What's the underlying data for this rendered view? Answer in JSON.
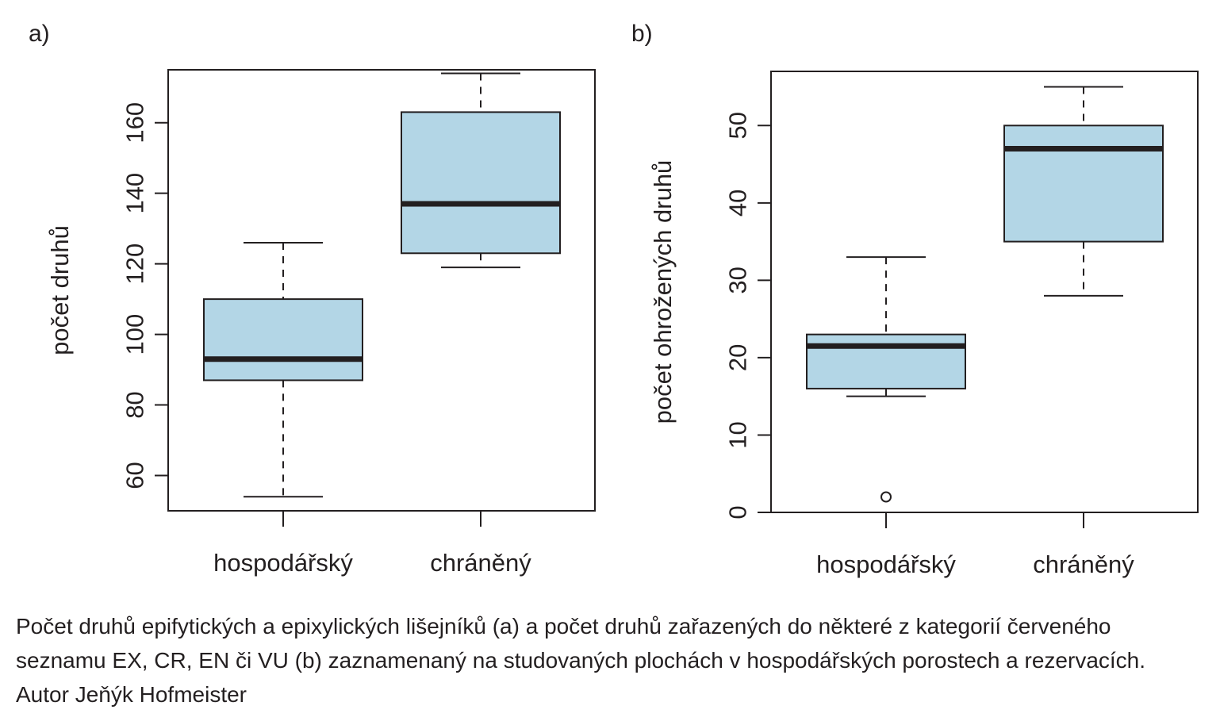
{
  "colors": {
    "box_fill": "#b3d6e6",
    "stroke": "#231f20",
    "background": "#ffffff"
  },
  "chart_data": [
    {
      "type": "boxplot",
      "panel_label": "a)",
      "ylabel": "počet druhů",
      "ylim": [
        50,
        175
      ],
      "yticks": [
        60,
        80,
        100,
        120,
        140,
        160
      ],
      "categories": [
        "hospodářský",
        "chráněný"
      ],
      "boxes": [
        {
          "category": "hospodářský",
          "whisker_low": 54,
          "q1": 87,
          "median": 93,
          "q3": 110,
          "whisker_high": 126,
          "outliers": []
        },
        {
          "category": "chráněný",
          "whisker_low": 119,
          "q1": 123,
          "median": 137,
          "q3": 163,
          "whisker_high": 174,
          "outliers": []
        }
      ]
    },
    {
      "type": "boxplot",
      "panel_label": "b)",
      "ylabel": "počet ohrožených druhů",
      "ylim": [
        0,
        57
      ],
      "yticks": [
        0,
        10,
        20,
        30,
        40,
        50
      ],
      "categories": [
        "hospodářský",
        "chráněný"
      ],
      "boxes": [
        {
          "category": "hospodářský",
          "whisker_low": 15,
          "q1": 16,
          "median": 21.5,
          "q3": 23,
          "whisker_high": 33,
          "outliers": [
            2
          ]
        },
        {
          "category": "chráněný",
          "whisker_low": 28,
          "q1": 35,
          "median": 47,
          "q3": 50,
          "whisker_high": 55,
          "outliers": []
        }
      ]
    }
  ],
  "caption": {
    "line1": "Počet druhů epifytických a epixylických lišejníků (a) a počet druhů zařazených do některé z kategorií červeného",
    "line2": "seznamu EX, CR, EN či VU (b) zaznamenaný na studovaných plochách v hospodářských porostech a rezervacích.",
    "line3": "Autor Jeňýk Hofmeister"
  }
}
